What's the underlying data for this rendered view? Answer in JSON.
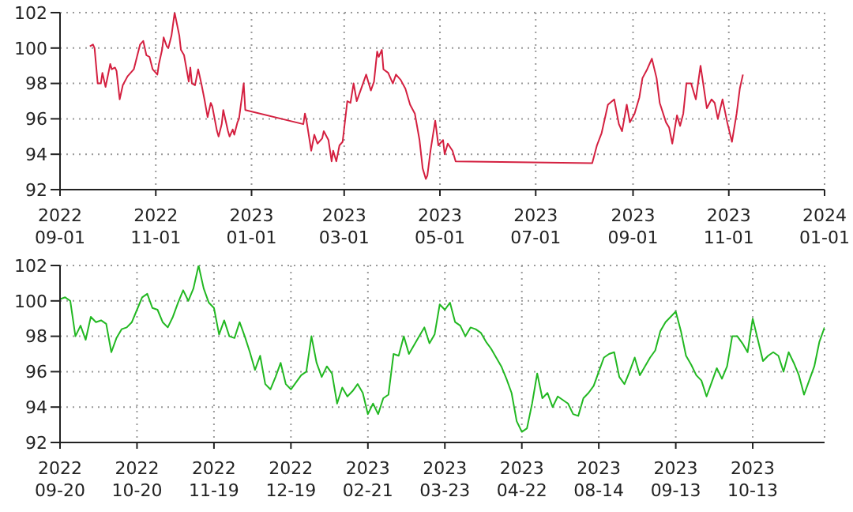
{
  "chart_data": [
    {
      "type": "line",
      "color": "#d42040",
      "grid": true,
      "marker": "none",
      "xlim": [
        "2022-09-01",
        "2024-01-01"
      ],
      "xticks": [
        {
          "value": "2022-09-01",
          "label": "2022\n09-01"
        },
        {
          "value": "2022-11-01",
          "label": "2022\n11-01"
        },
        {
          "value": "2023-01-01",
          "label": "2023\n01-01"
        },
        {
          "value": "2023-03-01",
          "label": "2023\n03-01"
        },
        {
          "value": "2023-05-01",
          "label": "2023\n05-01"
        },
        {
          "value": "2023-07-01",
          "label": "2023\n07-01"
        },
        {
          "value": "2023-09-01",
          "label": "2023\n09-01"
        },
        {
          "value": "2023-11-01",
          "label": "2023\n11-01"
        },
        {
          "value": "2024-01-01",
          "label": "2024\n01-01"
        }
      ],
      "ylim": [
        92,
        102
      ],
      "yticks": [
        92,
        94,
        96,
        98,
        100,
        102
      ],
      "x": [
        "2022-09-20",
        "2022-09-22",
        "2022-09-23",
        "2022-09-25",
        "2022-09-27",
        "2022-09-28",
        "2022-09-30",
        "2022-10-03",
        "2022-10-04",
        "2022-10-06",
        "2022-10-07",
        "2022-10-09",
        "2022-10-11",
        "2022-10-14",
        "2022-10-15",
        "2022-10-18",
        "2022-10-20",
        "2022-10-22",
        "2022-10-24",
        "2022-10-26",
        "2022-10-28",
        "2022-10-30",
        "2022-11-02",
        "2022-11-03",
        "2022-11-05",
        "2022-11-06",
        "2022-11-08",
        "2022-11-09",
        "2022-11-11",
        "2022-11-13",
        "2022-11-16",
        "2022-11-17",
        "2022-11-19",
        "2022-11-22",
        "2022-11-23",
        "2022-11-24",
        "2022-11-26",
        "2022-11-28",
        "2022-11-30",
        "2022-12-02",
        "2022-12-04",
        "2022-12-06",
        "2022-12-07",
        "2022-12-10",
        "2022-12-11",
        "2022-12-13",
        "2022-12-14",
        "2022-12-17",
        "2022-12-18",
        "2022-12-20",
        "2022-12-21",
        "2022-12-23",
        "2022-12-24",
        "2022-12-27",
        "2022-12-28",
        "2023-02-03",
        "2023-02-04",
        "2023-02-05",
        "2023-02-08",
        "2023-02-10",
        "2023-02-12",
        "2023-02-15",
        "2023-02-16",
        "2023-02-19",
        "2023-02-21",
        "2023-02-22",
        "2023-02-24",
        "2023-02-26",
        "2023-02-28",
        "2023-03-03",
        "2023-03-05",
        "2023-03-07",
        "2023-03-09",
        "2023-03-11",
        "2023-03-15",
        "2023-03-18",
        "2023-03-20",
        "2023-03-22",
        "2023-03-23",
        "2023-03-25",
        "2023-03-26",
        "2023-03-29",
        "2023-04-01",
        "2023-04-03",
        "2023-04-06",
        "2023-04-09",
        "2023-04-12",
        "2023-04-15",
        "2023-04-18",
        "2023-04-20",
        "2023-04-22",
        "2023-04-23",
        "2023-04-25",
        "2023-04-28",
        "2023-04-30",
        "2023-05-03",
        "2023-05-04",
        "2023-05-06",
        "2023-05-09",
        "2023-05-11",
        "2023-08-06",
        "2023-08-09",
        "2023-08-12",
        "2023-08-16",
        "2023-08-20",
        "2023-08-23",
        "2023-08-25",
        "2023-08-28",
        "2023-08-30",
        "2023-09-02",
        "2023-09-05",
        "2023-09-07",
        "2023-09-10",
        "2023-09-13",
        "2023-09-16",
        "2023-09-18",
        "2023-09-22",
        "2023-09-24",
        "2023-09-26",
        "2023-09-29",
        "2023-10-01",
        "2023-10-03",
        "2023-10-05",
        "2023-10-08",
        "2023-10-11",
        "2023-10-14",
        "2023-10-18",
        "2023-10-21",
        "2023-10-23",
        "2023-10-25",
        "2023-10-28",
        "2023-10-31",
        "2023-11-03",
        "2023-11-06",
        "2023-11-08",
        "2023-11-10"
      ],
      "values": [
        100.1,
        100.2,
        100.0,
        98.0,
        98.0,
        98.6,
        97.8,
        99.1,
        98.8,
        98.9,
        98.7,
        97.1,
        97.9,
        98.4,
        98.5,
        98.8,
        99.5,
        100.2,
        100.4,
        99.6,
        99.5,
        98.8,
        98.5,
        99.1,
        99.9,
        100.6,
        100.1,
        100.0,
        100.7,
        102.0,
        100.7,
        99.9,
        99.6,
        98.1,
        98.9,
        98.0,
        97.9,
        98.8,
        98.0,
        97.1,
        96.1,
        96.9,
        96.7,
        95.3,
        95.0,
        95.7,
        96.5,
        95.3,
        95.0,
        95.4,
        95.1,
        95.8,
        96.0,
        98.0,
        96.5,
        95.7,
        96.3,
        95.9,
        94.2,
        95.1,
        94.6,
        94.9,
        95.3,
        94.8,
        93.6,
        94.2,
        93.6,
        94.5,
        94.7,
        97.0,
        96.9,
        98.0,
        97.0,
        97.5,
        98.5,
        97.6,
        98.1,
        99.8,
        99.5,
        99.9,
        98.8,
        98.6,
        98.0,
        98.5,
        98.2,
        97.7,
        96.8,
        96.3,
        94.8,
        93.2,
        92.6,
        92.8,
        94.2,
        95.9,
        94.5,
        94.8,
        94.0,
        94.6,
        94.2,
        93.6,
        93.5,
        94.5,
        95.2,
        96.8,
        97.1,
        95.7,
        95.3,
        96.8,
        95.8,
        96.3,
        97.2,
        98.3,
        98.8,
        99.4,
        98.3,
        96.9,
        95.8,
        95.5,
        94.6,
        96.2,
        95.6,
        96.3,
        98.0,
        98.0,
        97.1,
        99.0,
        96.6,
        97.1,
        96.9,
        96.0,
        97.1,
        95.8,
        94.7,
        96.3,
        97.7,
        98.5
      ]
    },
    {
      "type": "line",
      "color": "#22b822",
      "grid": true,
      "marker": "none",
      "categories": [
        "2022\n09-20",
        null,
        null,
        null,
        null,
        null,
        null,
        null,
        null,
        null,
        null,
        null,
        null,
        null,
        null,
        "2022\n10-20",
        null,
        null,
        null,
        null,
        null,
        null,
        null,
        null,
        null,
        null,
        null,
        null,
        null,
        null,
        "2022\n11-19",
        null,
        null,
        null,
        null,
        null,
        null,
        null,
        null,
        null,
        null,
        null,
        null,
        null,
        null,
        "2022\n12-19",
        null,
        null,
        null,
        null,
        null,
        null,
        null,
        null,
        null,
        null,
        null,
        null,
        null,
        null,
        "2023\n02-21",
        null,
        null,
        null,
        null,
        null,
        null,
        null,
        null,
        null,
        null,
        null,
        null,
        null,
        null,
        "2023\n03-23",
        null,
        null,
        null,
        null,
        null,
        null,
        null,
        null,
        null,
        null,
        null,
        null,
        null,
        null,
        "2023\n04-22",
        null,
        null,
        null,
        null,
        null,
        null,
        null,
        null,
        null,
        null,
        null,
        null,
        null,
        null,
        "2023\n08-14",
        null,
        null,
        null,
        null,
        null,
        null,
        null,
        null,
        null,
        null,
        null,
        null,
        null,
        null,
        "2023\n09-13",
        null,
        null,
        null,
        null,
        null,
        null,
        null,
        null,
        null,
        null,
        null,
        null,
        null,
        null,
        "2023\n10-13",
        null,
        null,
        null,
        null,
        null,
        null,
        null,
        null,
        null,
        null,
        null,
        null,
        null,
        null
      ],
      "ylim": [
        92,
        102
      ],
      "yticks": [
        92,
        94,
        96,
        98,
        100,
        102
      ],
      "values": [
        100.1,
        100.2,
        100.0,
        98.0,
        98.6,
        97.8,
        99.1,
        98.8,
        98.9,
        98.7,
        97.1,
        97.9,
        98.4,
        98.5,
        98.8,
        99.5,
        100.2,
        100.4,
        99.6,
        99.5,
        98.8,
        98.5,
        99.1,
        99.9,
        100.6,
        100.0,
        100.7,
        102.0,
        100.7,
        99.9,
        99.6,
        98.1,
        98.9,
        98.0,
        97.9,
        98.8,
        98.0,
        97.1,
        96.1,
        96.9,
        95.3,
        95.0,
        95.7,
        96.5,
        95.3,
        95.0,
        95.4,
        95.8,
        96.0,
        98.0,
        96.5,
        95.7,
        96.3,
        95.9,
        94.2,
        95.1,
        94.6,
        94.9,
        95.3,
        94.8,
        93.6,
        94.2,
        93.6,
        94.5,
        94.7,
        97.0,
        96.9,
        98.0,
        97.0,
        97.5,
        98.0,
        98.5,
        97.6,
        98.1,
        99.8,
        99.5,
        99.9,
        98.8,
        98.6,
        98.0,
        98.5,
        98.4,
        98.2,
        97.7,
        97.3,
        96.8,
        96.3,
        95.6,
        94.8,
        93.2,
        92.6,
        92.8,
        94.2,
        95.9,
        94.5,
        94.8,
        94.0,
        94.6,
        94.4,
        94.2,
        93.6,
        93.5,
        94.5,
        94.8,
        95.2,
        96.0,
        96.8,
        97.0,
        97.1,
        95.7,
        95.3,
        96.0,
        96.8,
        95.8,
        96.3,
        96.8,
        97.2,
        98.3,
        98.8,
        99.1,
        99.4,
        98.3,
        96.9,
        96.4,
        95.8,
        95.5,
        94.6,
        95.4,
        96.2,
        95.6,
        96.3,
        98.0,
        98.0,
        97.6,
        97.1,
        99.0,
        97.8,
        96.6,
        96.9,
        97.1,
        96.9,
        96.0,
        97.1,
        96.5,
        95.8,
        94.7,
        95.5,
        96.3,
        97.7,
        98.5
      ]
    }
  ]
}
